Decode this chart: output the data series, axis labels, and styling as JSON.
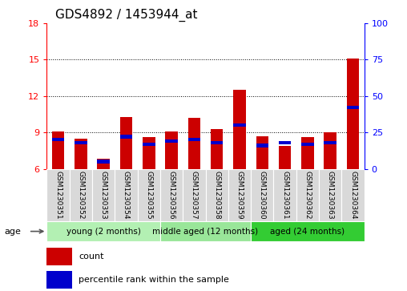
{
  "title": "GDS4892 / 1453944_at",
  "samples": [
    "GSM1230351",
    "GSM1230352",
    "GSM1230353",
    "GSM1230354",
    "GSM1230355",
    "GSM1230356",
    "GSM1230357",
    "GSM1230358",
    "GSM1230359",
    "GSM1230360",
    "GSM1230361",
    "GSM1230362",
    "GSM1230363",
    "GSM1230364"
  ],
  "count_values": [
    9.05,
    8.5,
    6.8,
    10.3,
    8.6,
    9.1,
    10.2,
    9.3,
    12.5,
    8.7,
    7.9,
    8.6,
    9.0,
    15.1
  ],
  "percentile_values": [
    20,
    18,
    5,
    22,
    17,
    19,
    20,
    18,
    30,
    16,
    18,
    17,
    18,
    42
  ],
  "ymin": 6,
  "ymax": 18,
  "yticks_left": [
    6,
    9,
    12,
    15,
    18
  ],
  "yticks_right": [
    0,
    25,
    50,
    75,
    100
  ],
  "bar_color": "#cc0000",
  "percentile_color": "#0000cc",
  "bar_width": 0.55,
  "group_labels": [
    "young (2 months)",
    "middle aged (12 months)",
    "aged (24 months)"
  ],
  "group_ranges": [
    [
      0,
      4
    ],
    [
      5,
      8
    ],
    [
      9,
      13
    ]
  ],
  "group_colors": [
    "#b3f0b3",
    "#99e699",
    "#33cc33"
  ],
  "age_label": "age",
  "legend_count": "count",
  "legend_pct": "percentile rank within the sample",
  "title_fontsize": 11,
  "tick_fontsize": 8,
  "bg_gray": "#d9d9d9",
  "cell_sep_color": "white"
}
